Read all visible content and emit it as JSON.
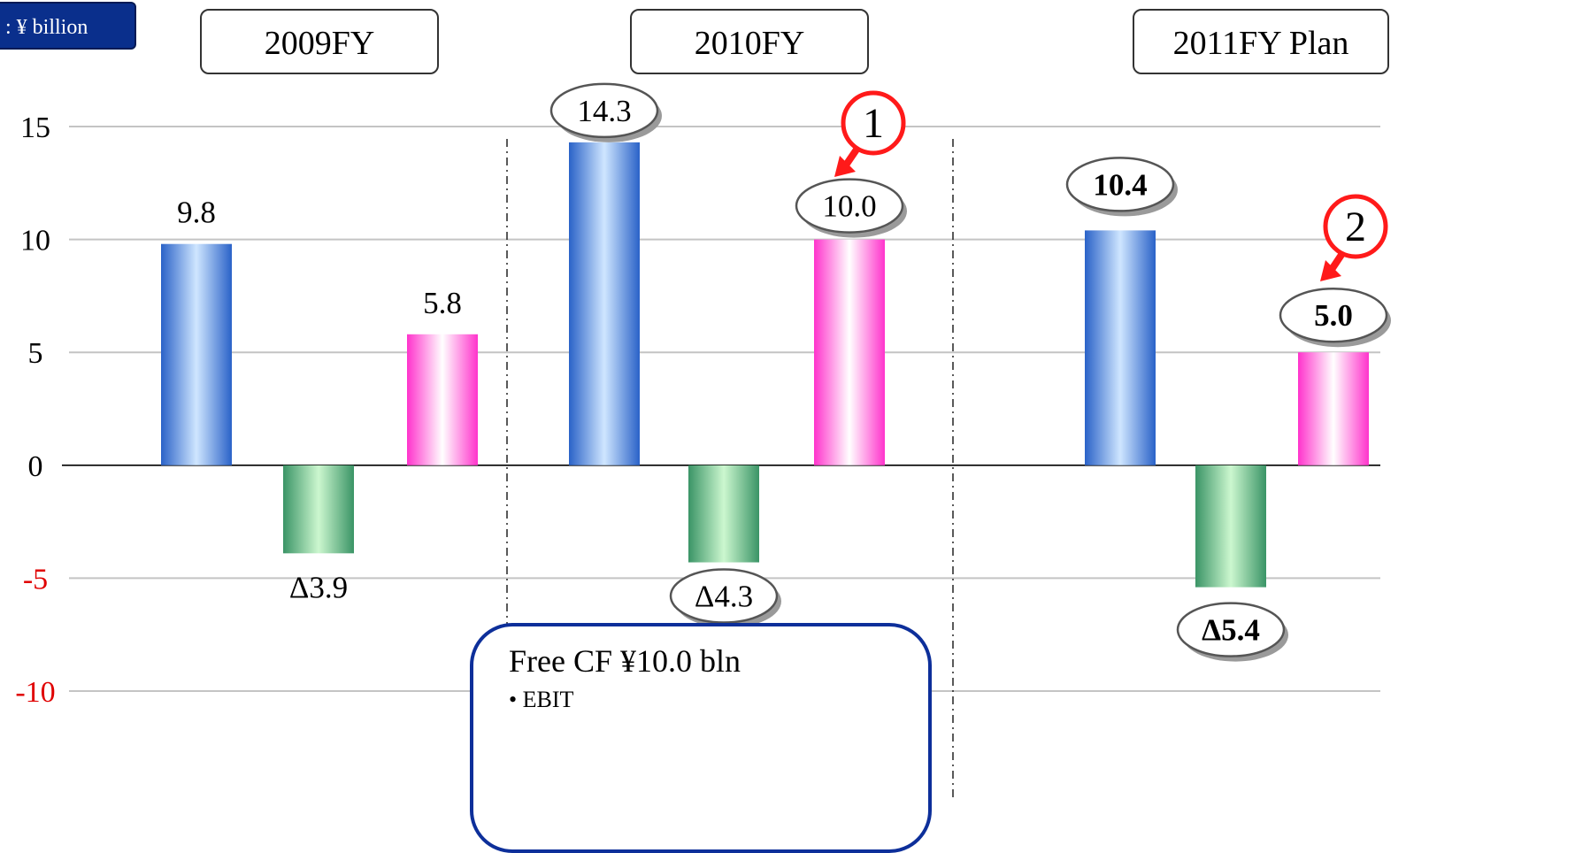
{
  "unit_label": ": ¥ billion",
  "periods": [
    "2009FY",
    "2010FY",
    "2011FY Plan"
  ],
  "callouts": [
    "1",
    "2"
  ],
  "free_cf_box": {
    "title": "Free CF ¥10.0 bln",
    "item": "EBIT"
  },
  "colors": {
    "series_a": "#2a66cc",
    "series_b": "#3c9a68",
    "series_c": "#ff33cc",
    "negative_ticks": "#e00000",
    "callout": "#ff1a1a",
    "box_border": "#0d2f9a"
  },
  "chart_data": {
    "type": "bar",
    "categories": [
      "2009FY",
      "2010FY",
      "2011FY Plan"
    ],
    "series": [
      {
        "values": [
          9.8,
          14.3,
          10.4
        ]
      },
      {
        "values": [
          -3.9,
          -4.3,
          -5.4
        ]
      },
      {
        "values": [
          5.8,
          10.0,
          5.0
        ]
      }
    ],
    "labels": [
      [
        "9.8",
        "14.3",
        "10.4"
      ],
      [
        "Δ3.9",
        "Δ4.3",
        "Δ5.4"
      ],
      [
        "5.8",
        "10.0",
        "5.0"
      ]
    ],
    "ylim": [
      -10,
      15
    ],
    "yticks": [
      15,
      10,
      5,
      0,
      -5,
      -10
    ],
    "grid": true
  }
}
